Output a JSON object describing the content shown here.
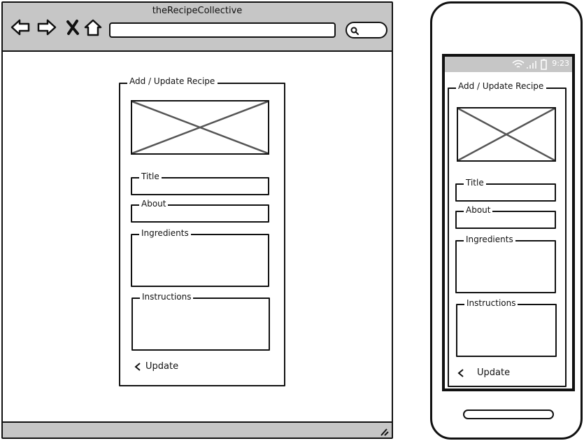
{
  "browser": {
    "title": "theRecipeCollective",
    "nav_icons": [
      "back-arrow-icon",
      "forward-arrow-icon",
      "close-x-icon",
      "home-icon"
    ],
    "search_icon": "search-icon"
  },
  "phone": {
    "status_time": "9:23",
    "status_icons": [
      "wifi-icon",
      "signal-icon",
      "battery-icon"
    ]
  },
  "form": {
    "legend": "Add / Update Recipe",
    "image_placeholder": "image-placeholder",
    "fields": {
      "title": "Title",
      "about": "About",
      "ingredients": "Ingredients",
      "instructions": "Instructions"
    },
    "update_label": "Update",
    "update_icon": "chevron-left-icon"
  },
  "colors": {
    "chrome_gray": "#c6c6c6",
    "ink": "#111111",
    "placeholder_line": "#555555"
  }
}
